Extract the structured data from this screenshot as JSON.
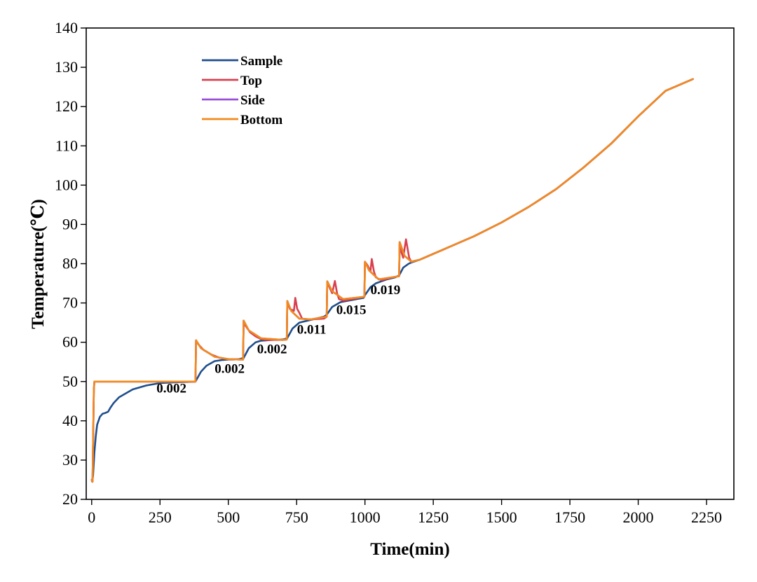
{
  "chart_data": {
    "type": "line",
    "xlabel": "Time(min)",
    "ylabel": "Temperature(℃)",
    "xlim": [
      -20,
      2350
    ],
    "ylim": [
      20,
      140
    ],
    "x_ticks": [
      0,
      250,
      500,
      750,
      1000,
      1250,
      1500,
      1750,
      2000,
      2250
    ],
    "y_ticks": [
      20,
      30,
      40,
      50,
      60,
      70,
      80,
      90,
      100,
      110,
      120,
      130,
      140
    ],
    "grid": false,
    "legend_position": "top-left",
    "legend": [
      "Sample",
      "Top",
      "Side",
      "Bottom"
    ],
    "series": [
      {
        "name": "Sample",
        "color": "#1f4e8c",
        "x": [
          0,
          2,
          5,
          10,
          15,
          20,
          30,
          40,
          50,
          60,
          70,
          80,
          100,
          150,
          200,
          250,
          300,
          350,
          380,
          400,
          420,
          450,
          480,
          500,
          520,
          540,
          556,
          575,
          600,
          620,
          640,
          660,
          700,
          715,
          735,
          760,
          790,
          820,
          850,
          860,
          880,
          910,
          940,
          970,
          995,
          1000,
          1020,
          1040,
          1060,
          1080,
          1110,
          1125,
          1140,
          1160,
          1170,
          1200,
          1250,
          1300,
          1400,
          1500,
          1600,
          1700,
          1800,
          1900,
          2000,
          2100,
          2200
        ],
        "y": [
          25,
          24.5,
          26,
          32,
          36,
          39,
          41,
          41.8,
          42,
          42.3,
          43.5,
          44.5,
          46,
          48,
          49,
          49.6,
          49.8,
          49.9,
          50,
          52.5,
          54,
          55.2,
          55.5,
          55.6,
          55.6,
          55.7,
          56,
          58.5,
          60,
          60.4,
          60.5,
          60.6,
          60.7,
          61,
          63.5,
          65,
          65.5,
          66,
          66.5,
          67,
          69,
          70.2,
          70.6,
          71,
          71.3,
          72,
          74,
          75,
          75.5,
          76,
          76.5,
          77,
          79,
          80,
          80.3,
          81,
          82.5,
          84,
          87,
          90.5,
          94.5,
          99,
          104.5,
          110.5,
          117.5,
          124,
          127
        ]
      },
      {
        "name": "Top",
        "color": "#d9404f",
        "x": [
          0,
          3,
          8,
          10,
          20,
          50,
          100,
          200,
          300,
          380,
          382,
          390,
          410,
          440,
          470,
          500,
          540,
          554,
          556,
          560,
          580,
          600,
          620,
          640,
          700,
          714,
          716,
          725,
          740,
          745,
          752,
          760,
          770,
          800,
          850,
          860,
          862,
          870,
          880,
          890,
          898,
          905,
          920,
          940,
          990,
          998,
          1000,
          1010,
          1020,
          1025,
          1033,
          1040,
          1060,
          1100,
          1125,
          1127,
          1133,
          1140,
          1150,
          1158,
          1162,
          1170,
          1200,
          1250,
          1300,
          1400,
          1500,
          1600,
          1700,
          1800,
          1900,
          2000,
          2100,
          2200
        ],
        "y": [
          25,
          24.5,
          48,
          50,
          50,
          50,
          50,
          50,
          50,
          50,
          60.5,
          59.5,
          58,
          56.8,
          56,
          55.7,
          55.6,
          55.6,
          65.5,
          64.5,
          62.5,
          61.5,
          60.8,
          60.6,
          60.6,
          60.7,
          70.5,
          68.5,
          68,
          71.3,
          68.5,
          67.5,
          66,
          65.8,
          66,
          66.5,
          75.5,
          74,
          72.5,
          75.6,
          72.5,
          71,
          70.6,
          70.8,
          71.5,
          71.6,
          80.5,
          79.5,
          78,
          81.2,
          78,
          76.5,
          75.8,
          76.5,
          76.8,
          85.5,
          83,
          81.5,
          86.2,
          83,
          81.5,
          80.5,
          81,
          82.5,
          84,
          87,
          90.5,
          94.5,
          99,
          104.5,
          110.5,
          117.5,
          124,
          127
        ]
      },
      {
        "name": "Side",
        "color": "#9b4fd6",
        "x": [
          0,
          3,
          8,
          10,
          50,
          380,
          382,
          400,
          450,
          500,
          540,
          554,
          556,
          575,
          620,
          700,
          714,
          716,
          730,
          760,
          800,
          860,
          862,
          880,
          920,
          990,
          998,
          1000,
          1015,
          1050,
          1125,
          1127,
          1145,
          1170,
          1200,
          1300,
          1400,
          1500,
          1600,
          1700,
          1800,
          1900,
          2000,
          2100,
          2200
        ],
        "y": [
          25,
          24.5,
          48,
          50,
          50,
          50,
          60.5,
          58.5,
          56.3,
          55.7,
          55.6,
          55.6,
          65.5,
          63,
          61,
          60.6,
          60.7,
          70.5,
          68,
          66,
          65.8,
          66.5,
          75.5,
          73,
          71,
          71.5,
          71.6,
          80.5,
          78.3,
          76,
          76.8,
          85.5,
          82,
          80.5,
          81,
          84,
          87,
          90.5,
          94.5,
          99,
          104.5,
          110.5,
          117.5,
          124,
          127
        ]
      },
      {
        "name": "Bottom",
        "color": "#f28a1c",
        "x": [
          0,
          3,
          8,
          10,
          50,
          100,
          200,
          300,
          380,
          382,
          400,
          450,
          500,
          540,
          554,
          556,
          575,
          620,
          700,
          714,
          716,
          730,
          760,
          800,
          860,
          862,
          880,
          920,
          990,
          998,
          1000,
          1015,
          1050,
          1125,
          1127,
          1145,
          1170,
          1200,
          1300,
          1400,
          1500,
          1600,
          1700,
          1800,
          1900,
          2000,
          2100,
          2200
        ],
        "y": [
          25,
          24.5,
          48,
          50,
          50,
          50,
          50,
          50,
          50,
          60.5,
          58.5,
          56.3,
          55.7,
          55.6,
          55.6,
          65.5,
          63,
          61,
          60.6,
          60.7,
          70.5,
          68,
          66,
          65.8,
          66.5,
          75.5,
          73,
          71,
          71.5,
          71.6,
          80.5,
          78.3,
          76,
          76.8,
          85.5,
          82,
          80.5,
          81,
          84,
          87,
          90.5,
          94.5,
          99,
          104.5,
          110.5,
          117.5,
          124,
          127
        ]
      }
    ],
    "annotations": [
      {
        "text": "0.002",
        "x": 292,
        "y": 47.2
      },
      {
        "text": "0.002",
        "x": 505,
        "y": 52.2
      },
      {
        "text": "0.002",
        "x": 660,
        "y": 57.2
      },
      {
        "text": "0.011",
        "x": 805,
        "y": 62.2
      },
      {
        "text": "0.015",
        "x": 950,
        "y": 67.2
      },
      {
        "text": "0.019",
        "x": 1075,
        "y": 72.2
      }
    ]
  }
}
